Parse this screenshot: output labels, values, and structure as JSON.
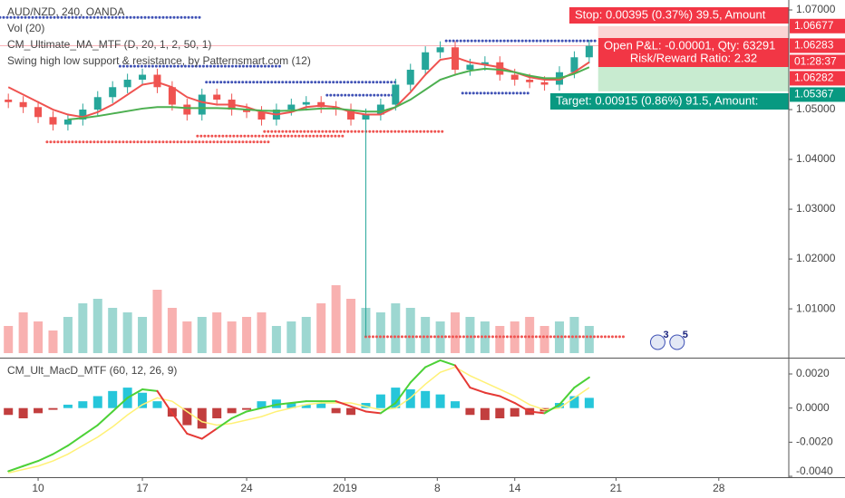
{
  "chart_data": [
    {
      "type": "candlestick",
      "title": "AUD/NZD, 240, OANDA",
      "indicators": [
        "Vol (20)",
        "CM_Ultimate_MA_MTF (D, 20, 1, 2, 50, 1)",
        "Swing high low support & resistance, by Patternsmart.com (12)"
      ],
      "x": [
        -2,
        -1,
        0,
        1,
        2,
        3,
        4,
        5,
        6,
        7,
        8,
        9,
        10,
        11,
        12,
        13,
        14,
        15,
        16,
        17,
        18,
        19,
        20,
        21,
        22,
        23,
        24,
        25,
        26,
        27,
        28,
        29,
        30,
        31,
        32,
        33,
        34,
        35,
        36,
        37
      ],
      "open": [
        1.052,
        1.0515,
        1.0505,
        1.0485,
        1.047,
        1.048,
        1.05,
        1.0525,
        1.0545,
        1.056,
        1.057,
        1.0545,
        1.051,
        1.049,
        1.053,
        1.052,
        1.05,
        1.0495,
        1.048,
        1.05,
        1.051,
        1.0515,
        1.0505,
        1.05,
        1.048,
        1.049,
        1.051,
        1.055,
        1.058,
        1.0615,
        1.0625,
        1.058,
        1.059,
        1.0595,
        1.057,
        1.056,
        1.0555,
        1.055,
        1.0575,
        1.0605
      ],
      "high": [
        1.0532,
        1.0527,
        1.0517,
        1.0497,
        1.0492,
        1.0512,
        1.0537,
        1.0557,
        1.0572,
        1.0582,
        1.0582,
        1.0557,
        1.0522,
        1.0542,
        1.0542,
        1.0532,
        1.0512,
        1.0507,
        1.0512,
        1.0522,
        1.0527,
        1.0527,
        1.0517,
        1.0512,
        1.0502,
        1.0522,
        1.0562,
        1.0592,
        1.0627,
        1.0637,
        1.0637,
        1.0602,
        1.0607,
        1.0607,
        1.0582,
        1.0572,
        1.0567,
        1.0587,
        1.0617,
        1.064
      ],
      "low": [
        1.0503,
        1.0493,
        1.0473,
        1.0458,
        1.0458,
        1.0468,
        1.0488,
        1.0513,
        1.0533,
        1.0548,
        1.0533,
        1.0498,
        1.0478,
        1.0478,
        1.0508,
        1.0488,
        1.0483,
        1.0468,
        1.0468,
        1.0488,
        1.0498,
        1.0493,
        1.0488,
        1.0468,
        1.0044,
        1.0478,
        1.0498,
        1.0538,
        1.0568,
        1.0603,
        1.0568,
        1.0568,
        1.0578,
        1.0558,
        1.0548,
        1.0543,
        1.0538,
        1.0538,
        1.0563,
        1.0593
      ],
      "close": [
        1.0515,
        1.0505,
        1.0485,
        1.047,
        1.048,
        1.05,
        1.0525,
        1.0545,
        1.056,
        1.057,
        1.0545,
        1.051,
        1.049,
        1.053,
        1.052,
        1.05,
        1.0495,
        1.048,
        1.05,
        1.051,
        1.0515,
        1.0505,
        1.05,
        1.048,
        1.049,
        1.051,
        1.055,
        1.058,
        1.0615,
        1.0625,
        1.058,
        1.059,
        1.0595,
        1.057,
        1.056,
        1.0555,
        1.055,
        1.0575,
        1.0605,
        1.0628
      ],
      "up_color": "#26a69a",
      "down_color": "#ef5350",
      "lines": [
        {
          "color": "#ef5350",
          "values": [
            1.0545,
            1.053,
            1.0515,
            1.05,
            1.049,
            1.0485,
            1.0495,
            1.051,
            1.053,
            1.055,
            1.0555,
            1.0545,
            1.0525,
            1.0515,
            1.051,
            1.051,
            1.0505,
            1.0495,
            1.049,
            1.0495,
            1.0505,
            1.0508,
            1.0505,
            1.0495,
            1.049,
            1.049,
            1.0505,
            1.0535,
            1.057,
            1.06,
            1.0605,
            1.0595,
            1.059,
            1.0585,
            1.0575,
            1.0565,
            1.056,
            1.056,
            1.0575,
            1.0595
          ]
        },
        {
          "color": "#4caf50",
          "values": [
            null,
            null,
            null,
            null,
            1.048,
            1.0483,
            1.0487,
            1.0492,
            1.0497,
            1.0502,
            1.0505,
            1.0505,
            1.0503,
            1.0503,
            1.0503,
            1.0502,
            1.05,
            1.0498,
            1.0497,
            1.0498,
            1.05,
            1.0502,
            1.0502,
            1.0499,
            1.0496,
            1.0496,
            1.0505,
            1.052,
            1.054,
            1.056,
            1.057,
            1.0578,
            1.0582,
            1.058,
            1.0575,
            1.0568,
            1.0563,
            1.0563,
            1.0572,
            1.0585
          ]
        }
      ],
      "volume": [
        30,
        45,
        35,
        25,
        40,
        55,
        60,
        50,
        45,
        40,
        70,
        50,
        35,
        40,
        45,
        35,
        40,
        45,
        30,
        35,
        40,
        55,
        75,
        60,
        50,
        45,
        55,
        50,
        40,
        35,
        45,
        40,
        35,
        30,
        35,
        40,
        30,
        35,
        40,
        30
      ],
      "volume_lim": [
        0,
        100
      ],
      "levels": [
        {
          "price": 1.0685,
          "from": -2.56,
          "to": 10.96,
          "color": "#3f51b5"
        },
        {
          "price": 1.0587,
          "from": 5.5,
          "to": 16.3,
          "color": "#3f51b5"
        },
        {
          "price": 1.0555,
          "from": 11.3,
          "to": 24.2,
          "color": "#3f51b5"
        },
        {
          "price": 1.0529,
          "from": 19.4,
          "to": 24.2,
          "color": "#3f51b5"
        },
        {
          "price": 1.0638,
          "from": 27.4,
          "to": 37.6,
          "color": "#3f51b5"
        },
        {
          "price": 1.0533,
          "from": 28.5,
          "to": 33,
          "color": "#3f51b5"
        },
        {
          "price": 1.0435,
          "from": 0.6,
          "to": 15.5,
          "color": "#ef5350"
        },
        {
          "price": 1.0447,
          "from": 10.7,
          "to": 20.6,
          "color": "#ef5350"
        },
        {
          "price": 1.0456,
          "from": 15.2,
          "to": 27.3,
          "color": "#ef5350"
        },
        {
          "price": 1.0044,
          "from": 22,
          "to": 39.4,
          "color": "#ef5350"
        }
      ],
      "position": {
        "from": 37.6,
        "stop": 1.06677,
        "entry": 1.06282,
        "target": 1.05367
      },
      "trade_labels": {
        "stop": "Stop: 0.00395 (0.37%) 39.5, Amount",
        "pnl": "Open P&L: -0.00001, Qty: 63291",
        "ratio": "Risk/Reward Ratio: 2.32",
        "target": "Target: 0.00915 (0.86%) 91.5, Amount:"
      },
      "axis_tags": [
        {
          "value": 1.06677,
          "label": "1.06677",
          "color": "#f23645"
        },
        {
          "value": 1.06283,
          "label": "1.06283",
          "color": "#f23645"
        },
        {
          "label": "01:28:37",
          "color": "#f23645"
        },
        {
          "value": 1.06282,
          "label": "1.06282",
          "color": "#f23645"
        },
        {
          "value": 1.05367,
          "label": "1.05367",
          "color": "#089981"
        }
      ],
      "events": [
        {
          "x": 41.6,
          "count": 3
        },
        {
          "x": 42.9,
          "count": 5
        }
      ],
      "ylim": [
        1.0002,
        1.072
      ],
      "yticks": [
        {
          "value": 1.07,
          "label": "1.07000"
        },
        {
          "value": 1.05,
          "label": "1.05000"
        },
        {
          "value": 1.04,
          "label": "1.04000"
        },
        {
          "value": 1.03,
          "label": "1.03000"
        },
        {
          "value": 1.02,
          "label": "1.02000"
        },
        {
          "value": 1.01,
          "label": "1.01000"
        }
      ],
      "xlim": [
        -2.56,
        50.4
      ],
      "xticks": [
        {
          "value": 0,
          "label": "10"
        },
        {
          "value": 7,
          "label": "17"
        },
        {
          "value": 14,
          "label": "24"
        },
        {
          "value": 20.6,
          "label": "2019"
        },
        {
          "value": 26.8,
          "label": "8"
        },
        {
          "value": 32,
          "label": "14"
        },
        {
          "value": 38.8,
          "label": "21"
        },
        {
          "value": 45.7,
          "label": "28"
        }
      ]
    },
    {
      "type": "macd",
      "title": "CM_Ult_MacD_MTF (60, 12, 26, 9)",
      "x": [
        -2,
        -1,
        0,
        1,
        2,
        3,
        4,
        5,
        6,
        7,
        8,
        9,
        10,
        11,
        12,
        13,
        14,
        15,
        16,
        17,
        18,
        19,
        20,
        21,
        22,
        23,
        24,
        25,
        26,
        27,
        28,
        29,
        30,
        31,
        32,
        33,
        34,
        35,
        36,
        37
      ],
      "histogram": [
        -0.0004,
        -0.0006,
        -0.0003,
        -0.0001,
        0.0002,
        0.0004,
        0.0007,
        0.001,
        0.0012,
        0.0009,
        0.0004,
        -0.0005,
        -0.001,
        -0.0012,
        -0.0006,
        -0.0003,
        -0.0001,
        0.0004,
        0.0005,
        0.0003,
        0.0002,
        0.0003,
        -0.0003,
        -0.0004,
        0.0003,
        0.0008,
        0.0012,
        0.0011,
        0.001,
        0.0008,
        0.0004,
        -0.0004,
        -0.0007,
        -0.0006,
        -0.0005,
        -0.0004,
        -0.0002,
        0.0003,
        0.0007,
        0.0006
      ],
      "macd": [
        -0.0037,
        -0.0034,
        -0.0031,
        -0.0027,
        -0.0022,
        -0.0016,
        -0.001,
        -0.0002,
        0.0006,
        0.0011,
        0.001,
        -0.0003,
        -0.0015,
        -0.0018,
        -0.0012,
        -0.0006,
        -0.0002,
        0.0,
        0.0002,
        0.0003,
        0.0004,
        0.0004,
        0.0004,
        0.0001,
        -0.0002,
        -0.0003,
        0.0003,
        0.0015,
        0.0024,
        0.0028,
        0.0025,
        0.0012,
        0.0009,
        0.0007,
        0.0003,
        -0.0002,
        -0.0003,
        0.0002,
        0.0012,
        0.0018
      ],
      "signal": [
        -0.0038,
        -0.0036,
        -0.0034,
        -0.0031,
        -0.0027,
        -0.0022,
        -0.0017,
        -0.0011,
        -0.0004,
        0.0002,
        0.0006,
        0.0004,
        -0.0002,
        -0.0008,
        -0.001,
        -0.0009,
        -0.0007,
        -0.0005,
        -0.0002,
        0.0,
        0.0002,
        0.0003,
        0.0003,
        0.0003,
        0.0001,
        -0.0001,
        0.0,
        0.0006,
        0.0014,
        0.0021,
        0.0024,
        0.0019,
        0.0015,
        0.0011,
        0.0007,
        0.0002,
        -0.0001,
        0.0,
        0.0006,
        0.0012
      ],
      "colors": {
        "up": "#00bcd4",
        "down": "#b71c1c",
        "macd_up": "#4cd137",
        "macd_down": "#e53935",
        "signal": "#fff176"
      },
      "ylim": [
        -0.00405,
        0.00285
      ],
      "yticks": [
        {
          "value": 0.002,
          "label": "0.0020"
        },
        {
          "value": 0,
          "label": "0.0000"
        },
        {
          "value": -0.002,
          "label": "-0.0020"
        },
        {
          "value": -0.004,
          "label": "-0.0040"
        }
      ]
    }
  ]
}
